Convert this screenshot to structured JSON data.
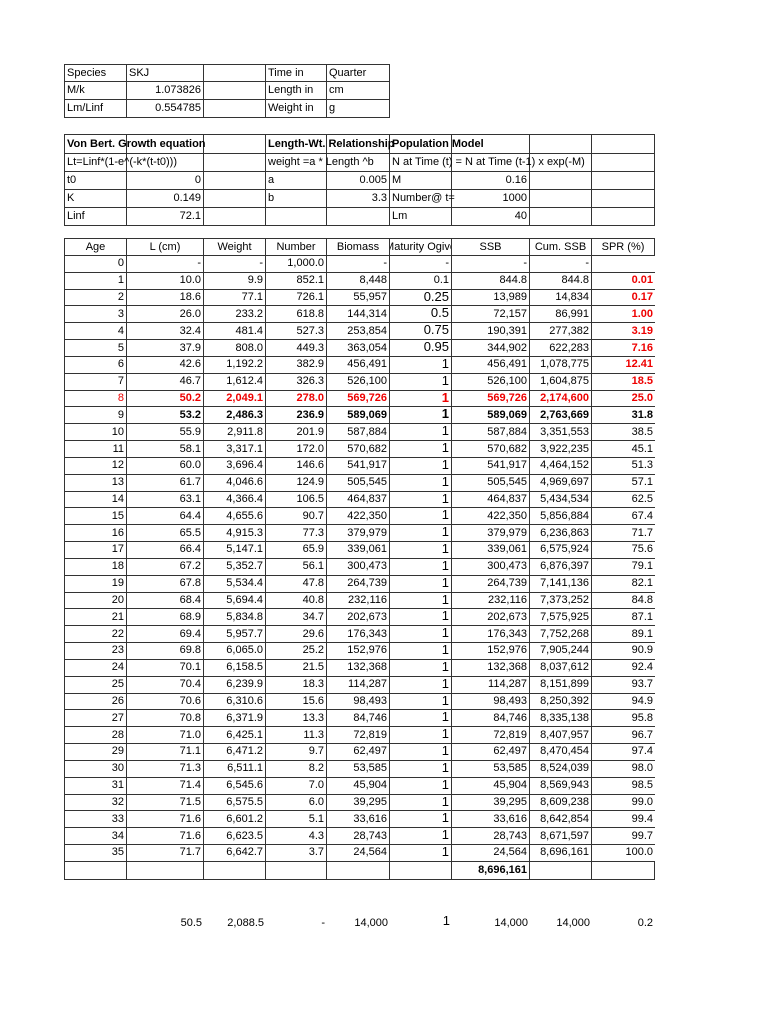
{
  "info_table": [
    [
      "Species",
      "SKJ",
      "",
      "Time in",
      "Quarter"
    ],
    [
      "M/k",
      "1.073826",
      "",
      "Length in",
      "cm"
    ],
    [
      "Lm/Linf",
      "0.554785",
      "",
      "Weight in",
      "g"
    ]
  ],
  "params_table": [
    [
      "Von Bert. Growth equation",
      "",
      "",
      "Length-Wt. Relationship",
      "",
      "Population Model",
      "",
      "",
      ""
    ],
    [
      "Lt=Linf*(1-e^(-k*(t-t0)))",
      "",
      "",
      "weight =a * Length ^b",
      "",
      "N at Time (t) = N at Time (t-1) x exp(-M)",
      "",
      "",
      ""
    ],
    [
      "t0",
      "0",
      "",
      "a",
      "0.005",
      "M",
      "0.16",
      "",
      ""
    ],
    [
      "K",
      "0.149",
      "",
      "b",
      "3.3",
      "Number@ t=",
      "1000",
      "",
      ""
    ],
    [
      "Linf",
      "72.1",
      "",
      "",
      "",
      "Lm",
      "40",
      "",
      ""
    ]
  ],
  "main_table": {
    "headers": [
      "Age",
      "L (cm)",
      "Weight",
      "Number",
      "Biomass",
      "Maturity Ogive",
      "SSB",
      "Cum. SSB",
      "SPR (%)"
    ],
    "rows": [
      {
        "cells": [
          "0",
          "-",
          "-",
          "1,000.0",
          "-",
          "-",
          "-",
          "-",
          ""
        ]
      },
      {
        "cells": [
          "1",
          "10.0",
          "9.9",
          "852.1",
          "8,448",
          "0.1",
          "844.8",
          "844.8",
          "0.01"
        ],
        "spr_red": true
      },
      {
        "cells": [
          "2",
          "18.6",
          "77.1",
          "726.1",
          "55,957",
          "0.25",
          "13,989",
          "14,834",
          "0.17"
        ],
        "spr_red": true
      },
      {
        "cells": [
          "3",
          "26.0",
          "233.2",
          "618.8",
          "144,314",
          "0.5",
          "72,157",
          "86,991",
          "1.00"
        ],
        "spr_red": true
      },
      {
        "cells": [
          "4",
          "32.4",
          "481.4",
          "527.3",
          "253,854",
          "0.75",
          "190,391",
          "277,382",
          "3.19"
        ],
        "spr_red": true
      },
      {
        "cells": [
          "5",
          "37.9",
          "808.0",
          "449.3",
          "363,054",
          "0.95",
          "344,902",
          "622,283",
          "7.16"
        ],
        "spr_red": true
      },
      {
        "cells": [
          "6",
          "42.6",
          "1,192.2",
          "382.9",
          "456,491",
          "1",
          "456,491",
          "1,078,775",
          "12.41"
        ],
        "spr_red": true
      },
      {
        "cells": [
          "7",
          "46.7",
          "1,612.4",
          "326.3",
          "526,100",
          "1",
          "526,100",
          "1,604,875",
          "18.5"
        ],
        "spr_red": true
      },
      {
        "cells": [
          "8",
          "50.2",
          "2,049.1",
          "278.0",
          "569,726",
          "1",
          "569,726",
          "2,174,600",
          "25.0"
        ],
        "row_red": true
      },
      {
        "cells": [
          "9",
          "53.2",
          "2,486.3",
          "236.9",
          "589,069",
          "1",
          "589,069",
          "2,763,669",
          "31.8"
        ],
        "row_bold": true
      },
      {
        "cells": [
          "10",
          "55.9",
          "2,911.8",
          "201.9",
          "587,884",
          "1",
          "587,884",
          "3,351,553",
          "38.5"
        ]
      },
      {
        "cells": [
          "11",
          "58.1",
          "3,317.1",
          "172.0",
          "570,682",
          "1",
          "570,682",
          "3,922,235",
          "45.1"
        ]
      },
      {
        "cells": [
          "12",
          "60.0",
          "3,696.4",
          "146.6",
          "541,917",
          "1",
          "541,917",
          "4,464,152",
          "51.3"
        ]
      },
      {
        "cells": [
          "13",
          "61.7",
          "4,046.6",
          "124.9",
          "505,545",
          "1",
          "505,545",
          "4,969,697",
          "57.1"
        ]
      },
      {
        "cells": [
          "14",
          "63.1",
          "4,366.4",
          "106.5",
          "464,837",
          "1",
          "464,837",
          "5,434,534",
          "62.5"
        ]
      },
      {
        "cells": [
          "15",
          "64.4",
          "4,655.6",
          "90.7",
          "422,350",
          "1",
          "422,350",
          "5,856,884",
          "67.4"
        ]
      },
      {
        "cells": [
          "16",
          "65.5",
          "4,915.3",
          "77.3",
          "379,979",
          "1",
          "379,979",
          "6,236,863",
          "71.7"
        ]
      },
      {
        "cells": [
          "17",
          "66.4",
          "5,147.1",
          "65.9",
          "339,061",
          "1",
          "339,061",
          "6,575,924",
          "75.6"
        ]
      },
      {
        "cells": [
          "18",
          "67.2",
          "5,352.7",
          "56.1",
          "300,473",
          "1",
          "300,473",
          "6,876,397",
          "79.1"
        ]
      },
      {
        "cells": [
          "19",
          "67.8",
          "5,534.4",
          "47.8",
          "264,739",
          "1",
          "264,739",
          "7,141,136",
          "82.1"
        ]
      },
      {
        "cells": [
          "20",
          "68.4",
          "5,694.4",
          "40.8",
          "232,116",
          "1",
          "232,116",
          "7,373,252",
          "84.8"
        ]
      },
      {
        "cells": [
          "21",
          "68.9",
          "5,834.8",
          "34.7",
          "202,673",
          "1",
          "202,673",
          "7,575,925",
          "87.1"
        ]
      },
      {
        "cells": [
          "22",
          "69.4",
          "5,957.7",
          "29.6",
          "176,343",
          "1",
          "176,343",
          "7,752,268",
          "89.1"
        ]
      },
      {
        "cells": [
          "23",
          "69.8",
          "6,065.0",
          "25.2",
          "152,976",
          "1",
          "152,976",
          "7,905,244",
          "90.9"
        ]
      },
      {
        "cells": [
          "24",
          "70.1",
          "6,158.5",
          "21.5",
          "132,368",
          "1",
          "132,368",
          "8,037,612",
          "92.4"
        ]
      },
      {
        "cells": [
          "25",
          "70.4",
          "6,239.9",
          "18.3",
          "114,287",
          "1",
          "114,287",
          "8,151,899",
          "93.7"
        ]
      },
      {
        "cells": [
          "26",
          "70.6",
          "6,310.6",
          "15.6",
          "98,493",
          "1",
          "98,493",
          "8,250,392",
          "94.9"
        ]
      },
      {
        "cells": [
          "27",
          "70.8",
          "6,371.9",
          "13.3",
          "84,746",
          "1",
          "84,746",
          "8,335,138",
          "95.8"
        ]
      },
      {
        "cells": [
          "28",
          "71.0",
          "6,425.1",
          "11.3",
          "72,819",
          "1",
          "72,819",
          "8,407,957",
          "96.7"
        ]
      },
      {
        "cells": [
          "29",
          "71.1",
          "6,471.2",
          "9.7",
          "62,497",
          "1",
          "62,497",
          "8,470,454",
          "97.4"
        ]
      },
      {
        "cells": [
          "30",
          "71.3",
          "6,511.1",
          "8.2",
          "53,585",
          "1",
          "53,585",
          "8,524,039",
          "98.0"
        ]
      },
      {
        "cells": [
          "31",
          "71.4",
          "6,545.6",
          "7.0",
          "45,904",
          "1",
          "45,904",
          "8,569,943",
          "98.5"
        ]
      },
      {
        "cells": [
          "32",
          "71.5",
          "6,575.5",
          "6.0",
          "39,295",
          "1",
          "39,295",
          "8,609,238",
          "99.0"
        ]
      },
      {
        "cells": [
          "33",
          "71.6",
          "6,601.2",
          "5.1",
          "33,616",
          "1",
          "33,616",
          "8,642,854",
          "99.4"
        ]
      },
      {
        "cells": [
          "34",
          "71.6",
          "6,623.5",
          "4.3",
          "28,743",
          "1",
          "28,743",
          "8,671,597",
          "99.7"
        ]
      },
      {
        "cells": [
          "35",
          "71.7",
          "6,642.7",
          "3.7",
          "24,564",
          "1",
          "24,564",
          "8,696,161",
          "100.0"
        ]
      }
    ],
    "total_row": [
      "",
      "",
      "",
      "",
      "",
      "",
      "8,696,161",
      "",
      ""
    ],
    "summary_row": [
      "",
      "50.5",
      "2,088.5",
      "-",
      "14,000",
      "1",
      "14,000",
      "14,000",
      "0.2"
    ]
  },
  "colors": {
    "highlight": "#ee0000",
    "border": "#333333"
  }
}
